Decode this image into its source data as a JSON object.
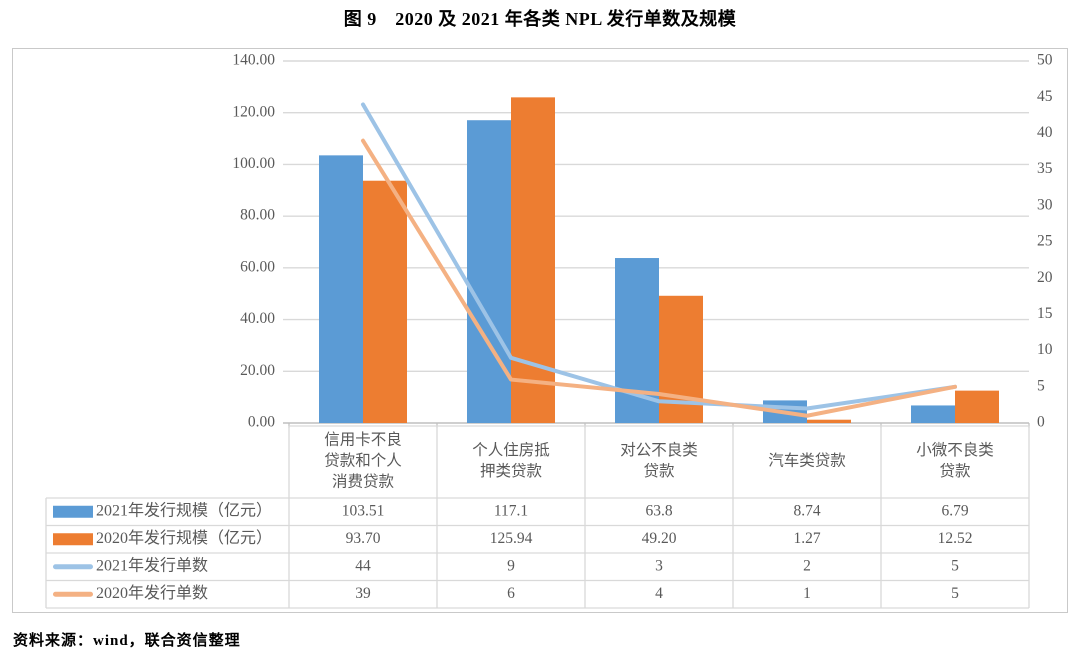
{
  "title": "图 9　2020 及 2021 年各类 NPL 发行单数及规模",
  "source": "资料来源：wind，联合资信整理",
  "colors": {
    "bar_2021": "#5B9BD5",
    "bar_2020": "#ED7D31",
    "line_2021": "#9DC3E6",
    "line_2020": "#F4B183",
    "grid": "#D9D9D9",
    "axis_line": "#BFBFBF",
    "table_border": "#D9D9D9",
    "text": "#595959"
  },
  "chart_data": {
    "type": "bar",
    "subtype": "combo bar+line with data table legend",
    "title": "图 9　2020 及 2021 年各类 NPL 发行单数及规模",
    "categories": [
      "信用卡不良贷款和个人消费贷款",
      "个人住房抵押类贷款",
      "对公不良类贷款",
      "汽车类贷款",
      "小微不良类贷款"
    ],
    "category_label_lines": [
      [
        "信用卡不良",
        "贷款和个人",
        "消费贷款"
      ],
      [
        "个人住房抵",
        "押类贷款"
      ],
      [
        "对公不良类",
        "贷款"
      ],
      [
        "汽车类贷款"
      ],
      [
        "小微不良类",
        "贷款"
      ]
    ],
    "series": [
      {
        "name": "2021年发行规模（亿元）",
        "type": "bar",
        "axis": "left",
        "color_key": "bar_2021",
        "values": [
          103.51,
          117.1,
          63.8,
          8.74,
          6.79
        ],
        "display": [
          "103.51",
          "117.1",
          "63.8",
          "8.74",
          "6.79"
        ]
      },
      {
        "name": "2020年发行规模（亿元）",
        "type": "bar",
        "axis": "left",
        "color_key": "bar_2020",
        "values": [
          93.7,
          125.94,
          49.2,
          1.27,
          12.52
        ],
        "display": [
          "93.70",
          "125.94",
          "49.20",
          "1.27",
          "12.52"
        ]
      },
      {
        "name": "2021年发行单数",
        "type": "line",
        "axis": "right",
        "color_key": "line_2021",
        "values": [
          44,
          9,
          3,
          2,
          5
        ],
        "display": [
          "44",
          "9",
          "3",
          "2",
          "5"
        ]
      },
      {
        "name": "2020年发行单数",
        "type": "line",
        "axis": "right",
        "color_key": "line_2020",
        "values": [
          39,
          6,
          4,
          1,
          5
        ],
        "display": [
          "39",
          "6",
          "4",
          "1",
          "5"
        ]
      }
    ],
    "left_axis": {
      "min": 0,
      "max": 140,
      "step": 20,
      "tick_labels": [
        "0.00",
        "20.00",
        "40.00",
        "60.00",
        "80.00",
        "100.00",
        "120.00",
        "140.00"
      ]
    },
    "right_axis": {
      "min": 0,
      "max": 50,
      "step": 5,
      "tick_labels": [
        "0",
        "5",
        "10",
        "15",
        "20",
        "25",
        "30",
        "35",
        "40",
        "45",
        "50"
      ]
    },
    "grid": true,
    "legend_position": "table-left"
  }
}
